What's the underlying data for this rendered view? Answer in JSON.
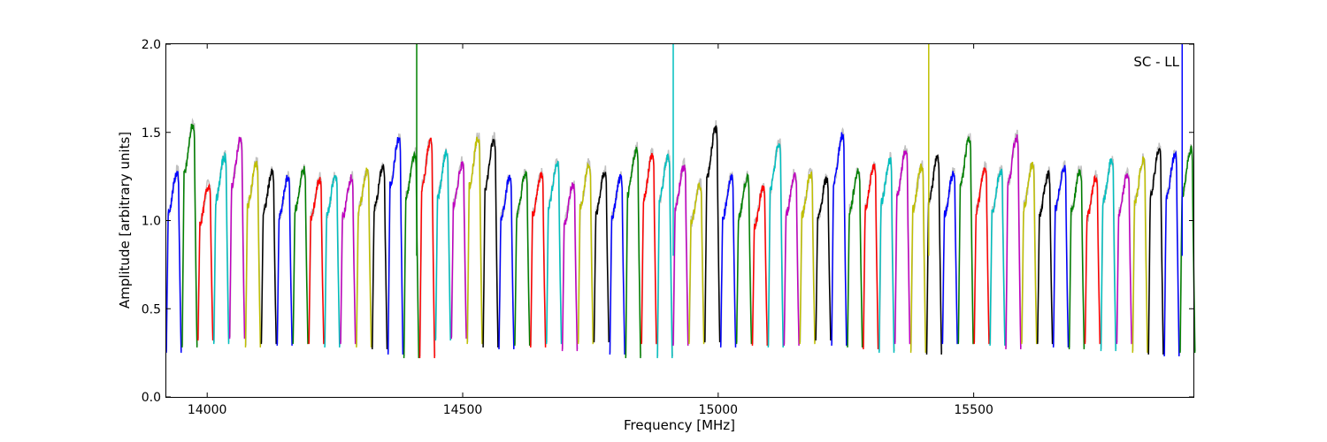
{
  "chart_data": {
    "type": "line",
    "title": "",
    "xlabel": "Frequency [MHz]",
    "ylabel": "Amplitude [arbitrary units]",
    "xlim": [
      13920,
      15930
    ],
    "ylim": [
      0,
      2.0
    ],
    "xticks": [
      14000,
      14500,
      15000,
      15500
    ],
    "yticks": [
      0.0,
      0.5,
      1.0,
      1.5,
      2.0
    ],
    "ytick_labels": [
      "0.0",
      "0.5",
      "1.0",
      "1.5",
      "2.0"
    ],
    "grid": false,
    "annotation": "SC - LL",
    "band_width_mhz": 31,
    "color_cycle": [
      "#0000ff",
      "#008000",
      "#ff0000",
      "#00bfbf",
      "#bf00bf",
      "#bfbf00",
      "#000000"
    ],
    "reference_color": "#c0c0c0",
    "band_starts": [
      13920,
      13951,
      13982,
      14013,
      14044,
      14075,
      14106,
      14137,
      14168,
      14199,
      14230,
      14261,
      14292,
      14323,
      14354,
      14385,
      14416,
      14447,
      14478,
      14509,
      14540,
      14571,
      14602,
      14633,
      14664,
      14695,
      14726,
      14757,
      14788,
      14819,
      14850,
      14881,
      14912,
      14943,
      14974,
      15005,
      15036,
      15067,
      15098,
      15129,
      15160,
      15191,
      15222,
      15253,
      15284,
      15315,
      15346,
      15377,
      15408,
      15439,
      15470,
      15501,
      15532,
      15563,
      15594,
      15625,
      15656,
      15687,
      15718,
      15749,
      15780,
      15811,
      15842,
      15873,
      15904
    ],
    "band_peaks": [
      1.27,
      1.54,
      1.2,
      1.36,
      1.46,
      1.32,
      1.27,
      1.24,
      1.29,
      1.23,
      1.25,
      1.24,
      1.28,
      1.3,
      1.46,
      1.37,
      1.45,
      1.38,
      1.32,
      1.46,
      1.45,
      1.24,
      1.26,
      1.26,
      1.32,
      1.2,
      1.31,
      1.27,
      1.24,
      1.4,
      1.37,
      1.36,
      1.31,
      1.2,
      1.52,
      1.24,
      1.24,
      1.18,
      1.43,
      1.26,
      1.26,
      1.23,
      1.48,
      1.28,
      1.31,
      1.34,
      1.39,
      1.3,
      1.35,
      1.26,
      1.46,
      1.29,
      1.28,
      1.47,
      1.31,
      1.26,
      1.3,
      1.28,
      1.24,
      1.34,
      1.26,
      1.34,
      1.4,
      1.37,
      1.4
    ],
    "band_troughs": [
      0.25,
      0.28,
      0.32,
      0.3,
      0.33,
      0.28,
      0.3,
      0.29,
      0.3,
      0.3,
      0.28,
      0.3,
      0.28,
      0.27,
      0.24,
      0.22,
      0.22,
      0.32,
      0.33,
      0.3,
      0.28,
      0.27,
      0.29,
      0.28,
      0.3,
      0.26,
      0.3,
      0.31,
      0.24,
      0.22,
      0.3,
      0.22,
      0.29,
      0.3,
      0.31,
      0.28,
      0.3,
      0.29,
      0.28,
      0.29,
      0.3,
      0.32,
      0.29,
      0.28,
      0.27,
      0.25,
      0.3,
      0.25,
      0.24,
      0.3,
      0.3,
      0.3,
      0.29,
      0.27,
      0.3,
      0.3,
      0.28,
      0.27,
      0.3,
      0.26,
      0.3,
      0.25,
      0.24,
      0.23,
      0.25
    ],
    "spikes": [
      {
        "x": 14410,
        "y": 2.0,
        "color": "#008000"
      },
      {
        "x": 14912,
        "y": 2.0,
        "color": "#00bfbf"
      },
      {
        "x": 15412,
        "y": 2.0,
        "color": "#bfbf00"
      },
      {
        "x": 15908,
        "y": 2.0,
        "color": "#0000ff"
      }
    ]
  }
}
